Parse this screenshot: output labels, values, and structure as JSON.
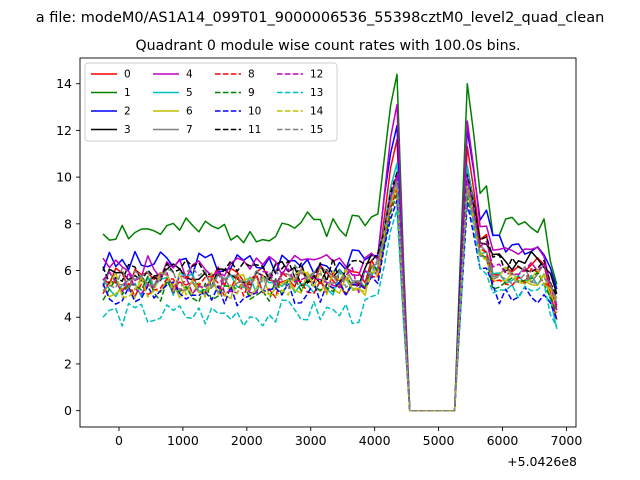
{
  "chart_data": {
    "type": "line",
    "suptitle": "a file: modeM0/AS1A14_099T01_9000006536_55398cztM0_level2_quad_clean",
    "title": "Quadrant 0 module wise count rates with 100.0s bins.",
    "xlabel": "",
    "ylabel": "",
    "x_offset_label": "+5.0426e8",
    "xlim": [
      -610,
      7150
    ],
    "ylim": [
      -0.7,
      15.1
    ],
    "x_ticks": [
      0,
      1000,
      2000,
      3000,
      4000,
      5000,
      6000,
      7000
    ],
    "y_ticks": [
      0,
      2,
      4,
      6,
      8,
      10,
      12,
      14
    ],
    "x_tick_labels": [
      "0",
      "1000",
      "2000",
      "3000",
      "4000",
      "5000",
      "6000",
      "7000"
    ],
    "y_tick_labels": [
      "0",
      "2",
      "4",
      "6",
      "8",
      "10",
      "12",
      "14"
    ],
    "x_start": -250,
    "x_step": 100,
    "legend": {
      "placement": "top-left",
      "columns": 4
    },
    "series": [
      {
        "name": "0",
        "color": "#ff0000",
        "dash": false,
        "base": 5.6,
        "peak1": 11.6,
        "peak2": 11.3,
        "after": 6.1,
        "end": 3.9,
        "seed": 1
      },
      {
        "name": "1",
        "color": "#008000",
        "dash": false,
        "base": 7.7,
        "peak1": 14.4,
        "peak2": 14.0,
        "after": 7.9,
        "end": 5.4,
        "seed": 2
      },
      {
        "name": "2",
        "color": "#0000ff",
        "dash": false,
        "base": 6.3,
        "peak1": 12.2,
        "peak2": 12.0,
        "after": 7.1,
        "end": 5.2,
        "seed": 3
      },
      {
        "name": "3",
        "color": "#000000",
        "dash": false,
        "base": 5.8,
        "peak1": 10.0,
        "peak2": 10.4,
        "after": 6.4,
        "end": 5.0,
        "seed": 4
      },
      {
        "name": "4",
        "color": "#bf00bf",
        "dash": false,
        "base": 6.1,
        "peak1": 13.1,
        "peak2": 12.4,
        "after": 6.7,
        "end": 4.3,
        "seed": 5
      },
      {
        "name": "5",
        "color": "#00bfbf",
        "dash": false,
        "base": 5.4,
        "peak1": 10.6,
        "peak2": 10.5,
        "after": 5.8,
        "end": 3.5,
        "seed": 6
      },
      {
        "name": "6",
        "color": "#bfbf00",
        "dash": false,
        "base": 5.3,
        "peak1": 9.6,
        "peak2": 9.4,
        "after": 5.6,
        "end": 4.6,
        "seed": 7
      },
      {
        "name": "7",
        "color": "#808080",
        "dash": false,
        "base": 5.5,
        "peak1": 9.9,
        "peak2": 9.7,
        "after": 5.9,
        "end": 4.8,
        "seed": 8
      },
      {
        "name": "8",
        "color": "#ff0000",
        "dash": true,
        "base": 5.3,
        "peak1": 9.5,
        "peak2": 9.6,
        "after": 5.8,
        "end": 4.4,
        "seed": 9
      },
      {
        "name": "9",
        "color": "#008000",
        "dash": true,
        "base": 5.2,
        "peak1": 9.3,
        "peak2": 9.2,
        "after": 5.6,
        "end": 4.2,
        "seed": 10
      },
      {
        "name": "10",
        "color": "#0000ff",
        "dash": true,
        "base": 5.0,
        "peak1": 9.0,
        "peak2": 8.9,
        "after": 5.0,
        "end": 3.9,
        "seed": 11
      },
      {
        "name": "11",
        "color": "#000000",
        "dash": true,
        "base": 5.9,
        "peak1": 10.2,
        "peak2": 10.1,
        "after": 6.3,
        "end": 4.9,
        "seed": 12
      },
      {
        "name": "12",
        "color": "#bf00bf",
        "dash": true,
        "base": 5.5,
        "peak1": 10.1,
        "peak2": 10.0,
        "after": 6.0,
        "end": 4.5,
        "seed": 13
      },
      {
        "name": "13",
        "color": "#00bfbf",
        "dash": true,
        "base": 4.1,
        "peak1": 8.6,
        "peak2": 9.5,
        "after": 5.0,
        "end": 3.6,
        "seed": 14
      },
      {
        "name": "14",
        "color": "#bfbf00",
        "dash": true,
        "base": 5.4,
        "peak1": 9.7,
        "peak2": 9.6,
        "after": 5.7,
        "end": 4.7,
        "seed": 15
      },
      {
        "name": "15",
        "color": "#808080",
        "dash": true,
        "base": 5.6,
        "peak1": 9.8,
        "peak2": 9.5,
        "after": 5.8,
        "end": 4.6,
        "seed": 16
      }
    ]
  }
}
